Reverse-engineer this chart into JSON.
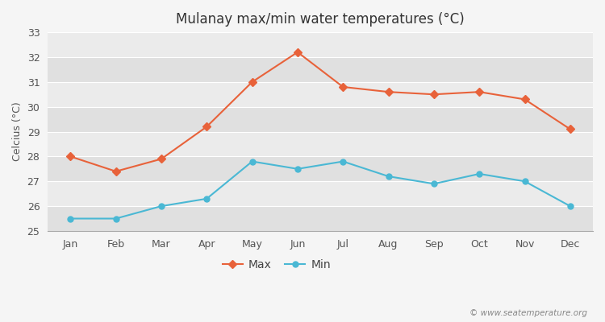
{
  "title": "Mulanay max/min water temperatures (°C)",
  "ylabel": "Celcius (°C)",
  "months": [
    "Jan",
    "Feb",
    "Mar",
    "Apr",
    "May",
    "Jun",
    "Jul",
    "Aug",
    "Sep",
    "Oct",
    "Nov",
    "Dec"
  ],
  "max_values": [
    28.0,
    27.4,
    27.9,
    29.2,
    31.0,
    32.2,
    30.8,
    30.6,
    30.5,
    30.6,
    30.3,
    29.1
  ],
  "min_values": [
    25.5,
    25.5,
    26.0,
    26.3,
    27.8,
    27.5,
    27.8,
    27.2,
    26.9,
    27.3,
    27.0,
    26.0
  ],
  "max_color": "#e8623a",
  "min_color": "#4ab8d4",
  "fig_bg_color": "#f5f5f5",
  "plot_bg_color_light": "#ebebeb",
  "plot_bg_color_dark": "#e0e0e0",
  "grid_color": "#ffffff",
  "ylim": [
    25,
    33
  ],
  "yticks": [
    25,
    26,
    27,
    28,
    29,
    30,
    31,
    32,
    33
  ],
  "watermark": "© www.seatemperature.org",
  "legend_labels": [
    "Max",
    "Min"
  ]
}
